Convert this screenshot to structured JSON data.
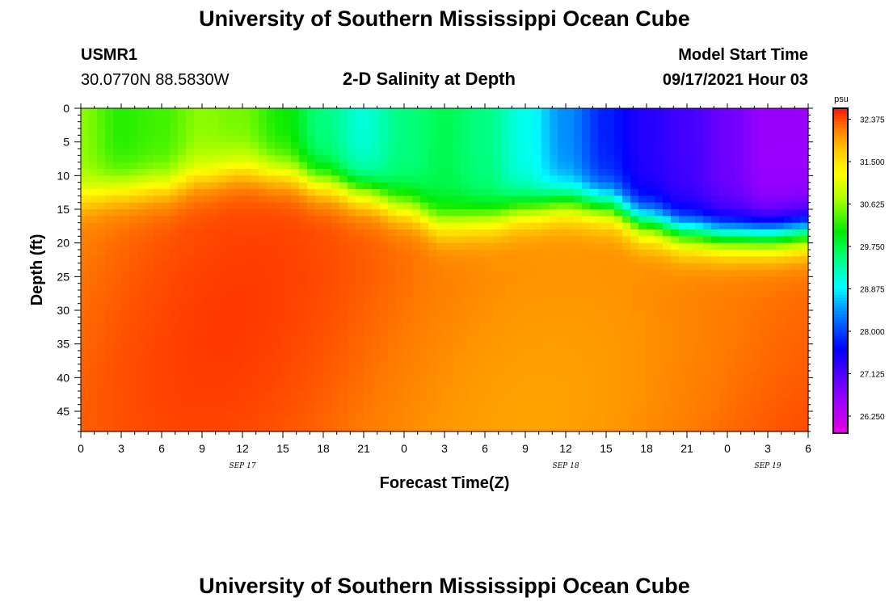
{
  "header": {
    "title_top": "University of Southern Mississippi Ocean Cube",
    "station_id": "USMR1",
    "coords": "30.0770N  88.5830W",
    "subtitle": "2-D Salinity at Depth",
    "model_label": "Model Start Time",
    "model_time": "09/17/2021 Hour 03",
    "title_bottom": "University of Southern Mississippi Ocean Cube"
  },
  "chart_data": {
    "type": "heatmap",
    "title": "2-D Salinity at Depth",
    "xlabel": "Forecast Time(Z)",
    "ylabel": "Depth (ft)",
    "x_ticks": [
      "0",
      "3",
      "6",
      "9",
      "12",
      "15",
      "18",
      "21",
      "0",
      "3",
      "6",
      "9",
      "12",
      "15",
      "18",
      "21",
      "0",
      "3",
      "6"
    ],
    "x_range_hours": [
      0,
      54
    ],
    "date_labels": [
      {
        "text": "SEP 17",
        "hour": 12
      },
      {
        "text": "SEP 18",
        "hour": 36
      },
      {
        "text": "SEP 19",
        "hour": 51
      }
    ],
    "y_ticks": [
      0,
      5,
      10,
      15,
      20,
      25,
      30,
      35,
      40,
      45
    ],
    "y_range": [
      0,
      48
    ],
    "colorbar": {
      "unit": "psu",
      "min": 25.9,
      "max": 32.6,
      "tick_labels": [
        "32.375",
        "31.500",
        "30.625",
        "29.750",
        "28.875",
        "28.000",
        "27.125",
        "26.250"
      ]
    },
    "surface_salinity": {
      "hours": [
        0,
        3,
        6,
        9,
        12,
        15,
        18,
        21,
        24,
        27,
        30,
        33,
        36,
        39,
        42,
        45,
        48,
        51,
        54
      ],
      "values": [
        30.6,
        30.2,
        30.3,
        30.6,
        30.5,
        30.1,
        29.5,
        29.1,
        29.5,
        29.7,
        29.5,
        29.0,
        28.4,
        27.8,
        27.4,
        27.2,
        26.9,
        26.6,
        26.6
      ]
    },
    "halocline_depth_ft": {
      "hours": [
        0,
        3,
        6,
        9,
        12,
        15,
        18,
        21,
        24,
        27,
        30,
        33,
        36,
        39,
        42,
        45,
        48,
        51,
        54
      ],
      "values": [
        13,
        12,
        11.5,
        10,
        9,
        9.5,
        11,
        12.5,
        14.5,
        17,
        16.5,
        15,
        14,
        14.5,
        17,
        18.5,
        19,
        19,
        18.5
      ]
    },
    "deep_salinity": 32.2
  }
}
